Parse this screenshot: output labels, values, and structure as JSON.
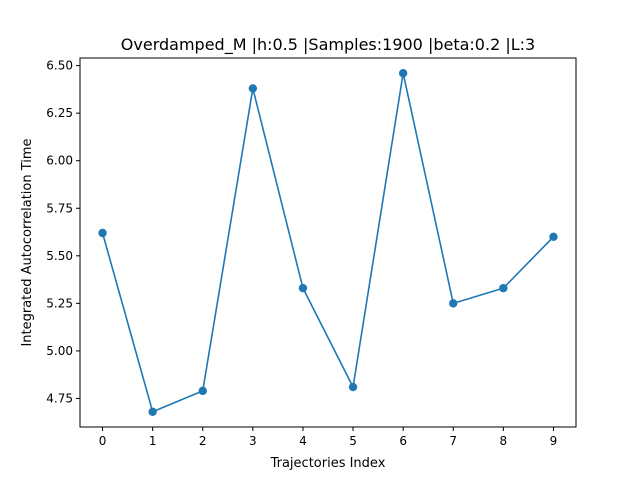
{
  "chart_data": {
    "type": "line",
    "title": "Overdamped_M |h:0.5 |Samples:1900 |beta:0.2 |L:3",
    "xlabel": "Trajectories Index",
    "ylabel": "Integrated Autocorrelation Time",
    "x": [
      0,
      1,
      2,
      3,
      4,
      5,
      6,
      7,
      8,
      9
    ],
    "series": [
      {
        "values": [
          5.62,
          4.68,
          4.79,
          6.38,
          5.33,
          4.81,
          6.46,
          5.25,
          5.33,
          5.6
        ]
      }
    ],
    "xlim": [
      -0.45,
      9.45
    ],
    "ylim": [
      4.6,
      6.54
    ],
    "xticks": [
      "0",
      "1",
      "2",
      "3",
      "4",
      "5",
      "6",
      "7",
      "8",
      "9"
    ],
    "yticks": [
      "4.75",
      "5.00",
      "5.25",
      "5.50",
      "5.75",
      "6.00",
      "6.25",
      "6.50"
    ],
    "grid": false,
    "color": "#1f77b4",
    "marker": "circle"
  }
}
